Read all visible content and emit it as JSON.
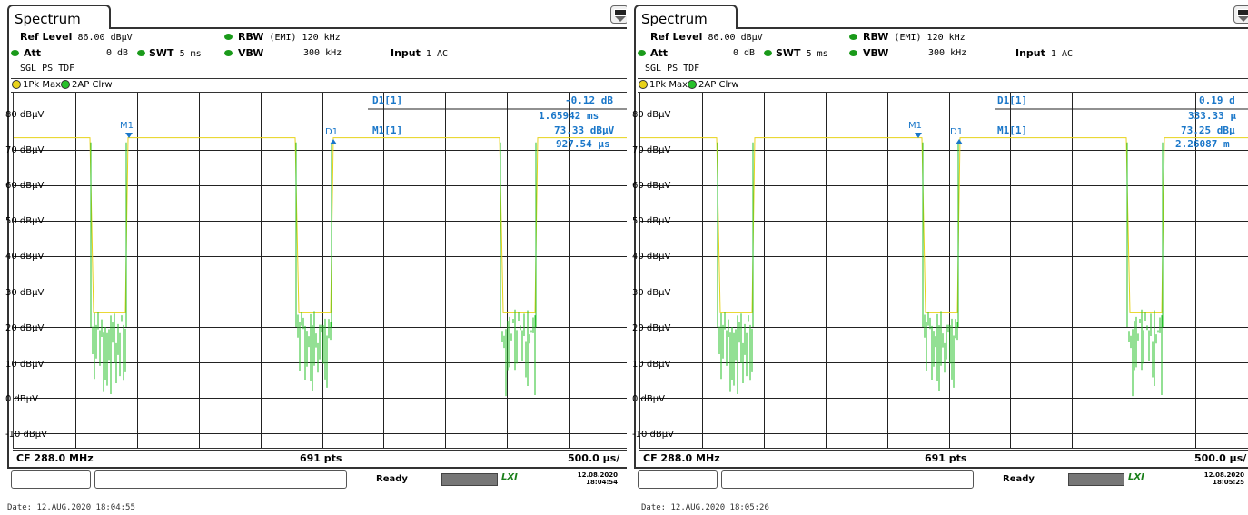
{
  "panels": [
    {
      "title": "Spectrum",
      "ref_level_label": "Ref Level",
      "ref_level_value": "86.00 dBµV",
      "att_label": "Att",
      "att_value": "0 dB",
      "swt_label": "SWT",
      "swt_value": "5 ms",
      "rbw_label": "RBW",
      "rbw_value": "(EMI) 120 kHz",
      "vbw_label": "VBW",
      "vbw_value": "300 kHz",
      "input_label": "Input",
      "input_value": "1 AC",
      "mode": "SGL PS TDF",
      "trace1": "1Pk Max",
      "trace2": "2AP Clrw",
      "marker_d1_label": "D1[1]",
      "marker_d1_level": "-0.12 dB",
      "marker_d1_time": "1.65942 ms",
      "marker_m1_label": "M1[1]",
      "marker_m1_level": "73.33 dBµV",
      "marker_m1_time": "927.54 µs",
      "m1_flag": "M1",
      "d1_flag": "D1",
      "yticks": [
        "80 dBµV",
        "70 dBµV",
        "60 dBµV",
        "50 dBµV",
        "40 dBµV",
        "30 dBµV",
        "20 dBµV",
        "10 dBµV",
        "0 dBµV",
        "-10 dBµV"
      ],
      "cf": "CF 288.0 MHz",
      "pts": "691 pts",
      "span": "500.0 µs/",
      "status": "Ready",
      "lxi": "LXI",
      "status_date": "12.08.2020",
      "status_time": "18:04:54",
      "caption": "Date: 12.AUG.2020  18:04:55"
    },
    {
      "title": "Spectrum",
      "ref_level_label": "Ref Level",
      "ref_level_value": "86.00 dBµV",
      "att_label": "Att",
      "att_value": "0 dB",
      "swt_label": "SWT",
      "swt_value": "5 ms",
      "rbw_label": "RBW",
      "rbw_value": "(EMI) 120 kHz",
      "vbw_label": "VBW",
      "vbw_value": "300 kHz",
      "input_label": "Input",
      "input_value": "1 AC",
      "mode": "SGL PS TDF",
      "trace1": "1Pk Max",
      "trace2": "2AP Clrw",
      "marker_d1_label": "D1[1]",
      "marker_d1_level": "0.19 d",
      "marker_d1_time": "333.33 µ",
      "marker_m1_label": "M1[1]",
      "marker_m1_level": "73.25 dBµ",
      "marker_m1_time": "2.26087 m",
      "m1_flag": "M1",
      "d1_flag": "D1",
      "yticks": [
        "80 dBµV",
        "70 dBµV",
        "60 dBµV",
        "50 dBµV",
        "40 dBµV",
        "30 dBµV",
        "20 dBµV",
        "10 dBµV",
        "0 dBµV",
        "-10 dBµV"
      ],
      "cf": "CF 288.0 MHz",
      "pts": "691 pts",
      "span": "500.0 µs/",
      "status": "Ready",
      "lxi": "LXI",
      "status_date": "12.08.2020",
      "status_time": "18:05:25",
      "caption": "Date: 12.AUG.2020  18:05:26"
    }
  ],
  "colors": {
    "trace_yellow": "#e8d21a",
    "trace_green": "#27c02a",
    "marker_blue": "#1a77c9"
  }
}
